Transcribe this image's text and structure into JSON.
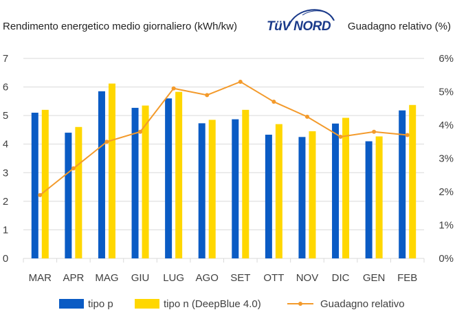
{
  "header": {
    "left_axis_title": "Rendimento energetico medio giornaliero (kWh/kw)",
    "right_axis_title": "Guadagno relativo (%)",
    "logo_text": "TüV NORD"
  },
  "colors": {
    "tipo_p": "#0a5bc4",
    "tipo_n": "#ffd700",
    "line": "#f39a2b",
    "grid": "#d9d9d9",
    "axis_text": "#404040"
  },
  "chart_data": {
    "type": "bar",
    "categories": [
      "MAR",
      "APR",
      "MAG",
      "GIU",
      "LUG",
      "AGO",
      "SET",
      "OTT",
      "NOV",
      "DIC",
      "GEN",
      "FEB"
    ],
    "series": [
      {
        "name": "tipo p",
        "axis": "left",
        "type": "bar",
        "values": [
          5.1,
          4.4,
          5.85,
          5.27,
          5.6,
          4.73,
          4.87,
          4.33,
          4.25,
          4.72,
          4.1,
          5.18
        ]
      },
      {
        "name": "tipo n (DeepBlue 4.0)",
        "axis": "left",
        "type": "bar",
        "values": [
          5.2,
          4.6,
          6.12,
          5.35,
          5.83,
          4.85,
          5.2,
          4.7,
          4.45,
          4.92,
          4.27,
          5.37
        ]
      },
      {
        "name": "Guadagno relativo",
        "axis": "right",
        "type": "line",
        "values": [
          1.9,
          2.7,
          3.5,
          3.8,
          5.1,
          4.9,
          5.3,
          4.7,
          4.25,
          3.65,
          3.8,
          3.7
        ]
      }
    ],
    "ylim": [
      0,
      7
    ],
    "yticks": [
      "0",
      "1",
      "2",
      "3",
      "4",
      "5",
      "6",
      "7"
    ],
    "y2lim": [
      0,
      6
    ],
    "y2ticks": [
      "0%",
      "1%",
      "2%",
      "3%",
      "4%",
      "5%",
      "6%"
    ],
    "grid": true,
    "legend_position": "bottom"
  }
}
